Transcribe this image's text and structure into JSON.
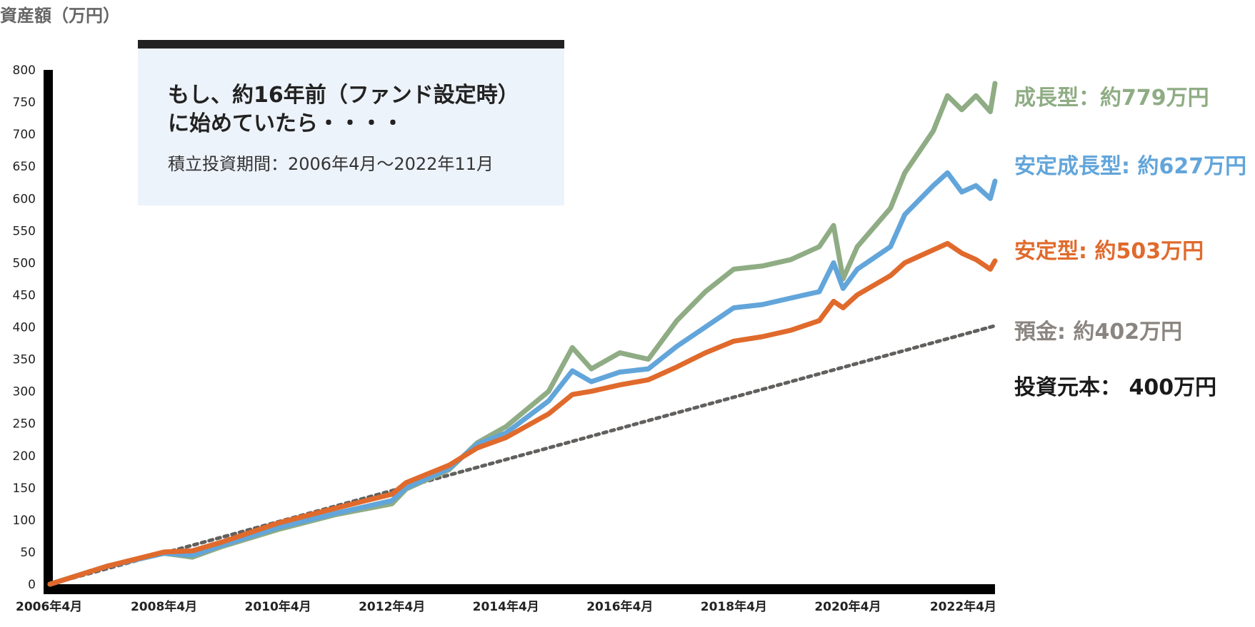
{
  "y_unit_label": "資産額（万円）",
  "info": {
    "headline": "もし、約16年前（ファンド設定時）\nに始めていたら・・・・",
    "period": "積立投資期間：2006年4月〜2022年11月"
  },
  "end_labels": {
    "growth": "成長型：約779万円",
    "stable_growth": "安定成長型: 約627万円",
    "stable": "安定型: 約503万円",
    "deposit": "預金: 約402万円",
    "principal": "投資元本： 400万円"
  },
  "colors": {
    "growth": "#8fac84",
    "stable_growth": "#62a5da",
    "stable": "#e06a2c",
    "deposit": "#62605e",
    "deposit_label": "#8a8580",
    "principal_label": "#1a1a1a",
    "axis": "#000000"
  },
  "chart_data": {
    "type": "line",
    "title": "",
    "ylabel": "資産額（万円）",
    "xlabel": "",
    "ylim": [
      0,
      800
    ],
    "yticks": [
      0,
      50,
      100,
      150,
      200,
      250,
      300,
      350,
      400,
      450,
      500,
      550,
      600,
      650,
      700,
      750,
      800
    ],
    "xlim": [
      "2006-04",
      "2022-11"
    ],
    "xticks": [
      "2006年4月",
      "2008年4月",
      "2010年4月",
      "2012年4月",
      "2014年4月",
      "2016年4月",
      "2018年4月",
      "2020年4月",
      "2022年4月"
    ],
    "grid": false,
    "series": [
      {
        "name": "成長型",
        "key": "growth",
        "style": "solid",
        "x": [
          "2006-04",
          "2007-04",
          "2008-04",
          "2008-10",
          "2009-04",
          "2010-04",
          "2011-04",
          "2012-04",
          "2012-07",
          "2013-04",
          "2013-10",
          "2014-04",
          "2015-01",
          "2015-06",
          "2015-10",
          "2016-04",
          "2016-10",
          "2017-04",
          "2017-10",
          "2018-04",
          "2018-10",
          "2019-04",
          "2019-10",
          "2020-01",
          "2020-03",
          "2020-06",
          "2021-01",
          "2021-04",
          "2021-10",
          "2022-01",
          "2022-04",
          "2022-07",
          "2022-10",
          "2022-11"
        ],
        "values": [
          0,
          28,
          48,
          42,
          58,
          85,
          108,
          125,
          148,
          178,
          220,
          245,
          300,
          368,
          335,
          360,
          350,
          410,
          455,
          490,
          495,
          505,
          525,
          558,
          475,
          525,
          585,
          640,
          705,
          760,
          738,
          760,
          735,
          779
        ]
      },
      {
        "name": "安定成長型",
        "key": "stable_growth",
        "style": "solid",
        "x": [
          "2006-04",
          "2007-04",
          "2008-04",
          "2008-10",
          "2009-04",
          "2010-04",
          "2011-04",
          "2012-04",
          "2012-07",
          "2013-04",
          "2013-10",
          "2014-04",
          "2015-01",
          "2015-06",
          "2015-10",
          "2016-04",
          "2016-10",
          "2017-04",
          "2017-10",
          "2018-04",
          "2018-10",
          "2019-04",
          "2019-10",
          "2020-01",
          "2020-03",
          "2020-06",
          "2021-01",
          "2021-04",
          "2021-10",
          "2022-01",
          "2022-04",
          "2022-07",
          "2022-10",
          "2022-11"
        ],
        "values": [
          0,
          28,
          48,
          45,
          60,
          88,
          110,
          130,
          150,
          180,
          218,
          235,
          285,
          332,
          315,
          330,
          335,
          370,
          400,
          430,
          435,
          445,
          455,
          500,
          460,
          490,
          525,
          575,
          620,
          640,
          610,
          620,
          600,
          627
        ]
      },
      {
        "name": "安定型",
        "key": "stable",
        "style": "solid",
        "x": [
          "2006-04",
          "2007-04",
          "2008-04",
          "2008-10",
          "2009-04",
          "2010-04",
          "2011-04",
          "2012-04",
          "2012-07",
          "2013-04",
          "2013-10",
          "2014-04",
          "2015-01",
          "2015-06",
          "2015-10",
          "2016-04",
          "2016-10",
          "2017-04",
          "2017-10",
          "2018-04",
          "2018-10",
          "2019-04",
          "2019-10",
          "2020-01",
          "2020-03",
          "2020-06",
          "2021-01",
          "2021-04",
          "2021-10",
          "2022-01",
          "2022-04",
          "2022-07",
          "2022-10",
          "2022-11"
        ],
        "values": [
          0,
          28,
          50,
          52,
          65,
          95,
          118,
          140,
          158,
          185,
          212,
          228,
          265,
          295,
          300,
          310,
          318,
          338,
          360,
          378,
          385,
          395,
          410,
          440,
          430,
          450,
          480,
          500,
          520,
          530,
          515,
          505,
          490,
          503
        ]
      },
      {
        "name": "預金",
        "key": "deposit",
        "style": "dotted",
        "x": [
          "2006-04",
          "2022-11"
        ],
        "values": [
          0,
          402
        ]
      }
    ],
    "legend": "inline-right"
  }
}
